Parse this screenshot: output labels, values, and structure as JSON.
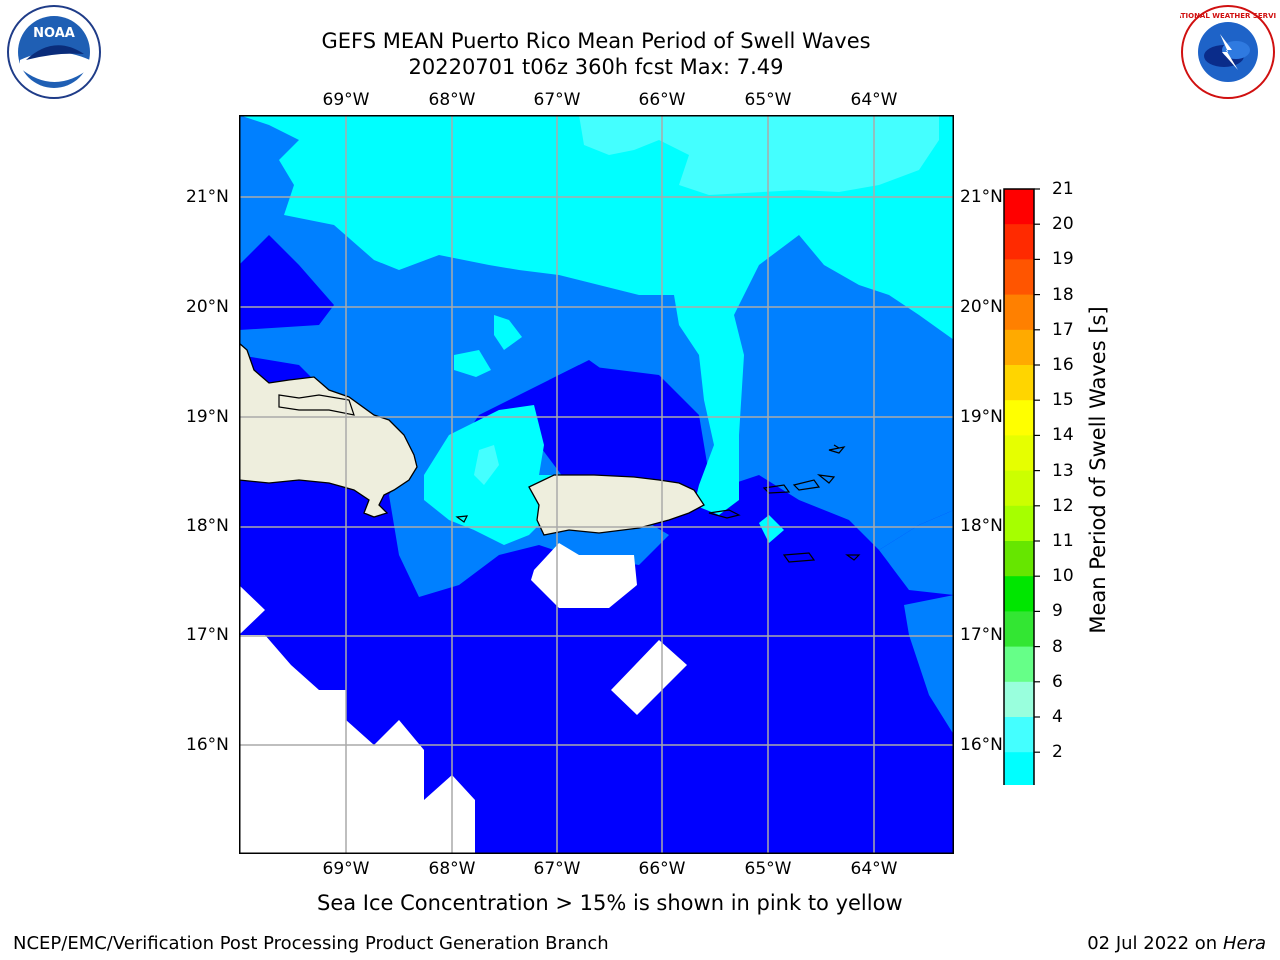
{
  "title": {
    "line1": "GEFS MEAN Puerto Rico Mean Period of Swell Waves",
    "line2": "20220701 t06z 360h fcst   Max: 7.49"
  },
  "longitudes": [
    "69°W",
    "68°W",
    "67°W",
    "66°W",
    "65°W",
    "64°W"
  ],
  "latitudes": [
    "21°N",
    "20°N",
    "19°N",
    "18°N",
    "17°N",
    "16°N"
  ],
  "colorbar": {
    "label": "Mean Period of Swell Waves [s]",
    "ticks": [
      "21",
      "20",
      "19",
      "18",
      "17",
      "16",
      "15",
      "14",
      "13",
      "12",
      "11",
      "10",
      "9",
      "8",
      "6",
      "4",
      "2"
    ],
    "colors": [
      "#ff0000",
      "#ff2a00",
      "#ff5500",
      "#ff8000",
      "#ffaa00",
      "#ffd500",
      "#ffff00",
      "#e6ff00",
      "#ccff00",
      "#a6ff00",
      "#66e600",
      "#00e600",
      "#33e633",
      "#66ff88",
      "#99ffdd",
      "#44ffff",
      "#00ffff",
      "#0080ff",
      "#0000ff"
    ]
  },
  "note": "Sea Ice Concentration > 15% is shown in pink to yellow",
  "footer": {
    "left": "NCEP/EMC/Verification Post Processing Product Generation Branch",
    "date": "02 Jul 2022 on ",
    "machine": "Hera"
  },
  "logos": {
    "left": "NOAA",
    "right": "NATIONAL WEATHER SERVICE"
  },
  "map_colors": {
    "land": "#eeeedd",
    "deep": "#0000ff",
    "mid": "#0080ff",
    "light": "#00ffff",
    "lighter": "#44ffff"
  }
}
